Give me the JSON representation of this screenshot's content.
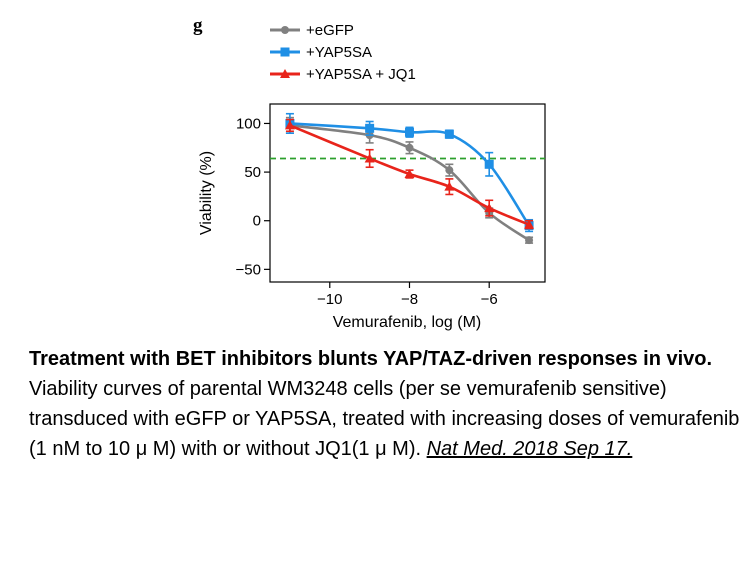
{
  "panel_label": "g",
  "caption": {
    "title": "Treatment with BET inhibitors blunts YAP/TAZ-driven responses in vivo.",
    "body": "Viability curves of parental WM3248 cells (per se vemurafenib sensitive) transduced with eGFP or YAP5SA, treated with increasing doses of vemurafenib (1 nM to 10 μ M) with or without JQ1(1 μ M).",
    "citation": "Nat Med. 2018 Sep 17."
  },
  "chart_data": {
    "type": "line",
    "title": "",
    "xlabel": "Vemurafenib, log (M)",
    "ylabel": "Viability (%)",
    "xlim": [
      -11.5,
      -4.6
    ],
    "ylim": [
      -63,
      120
    ],
    "xticks": [
      -10,
      -8,
      -6
    ],
    "xtick_labels": [
      "−10",
      "−8",
      "−6"
    ],
    "yticks": [
      100,
      50,
      0,
      -50
    ],
    "ytick_labels": [
      "100",
      "50",
      "0",
      "−50"
    ],
    "legend_position": "top",
    "reference_line": {
      "y": 64,
      "color": "#2ca02c",
      "style": "dashed"
    },
    "series": [
      {
        "name": "+eGFP",
        "color": "#808080",
        "marker": "circle",
        "x": [
          -11,
          -9,
          -8,
          -7,
          -6,
          -5
        ],
        "y": [
          98,
          88,
          75,
          52,
          8,
          -20
        ],
        "err": [
          8,
          8,
          6,
          6,
          5,
          3
        ]
      },
      {
        "name": "+YAP5SA",
        "color": "#1f8fe5",
        "marker": "square",
        "x": [
          -11,
          -9,
          -8,
          -7,
          -6,
          -5
        ],
        "y": [
          100,
          95,
          91,
          89,
          58,
          -5
        ],
        "err": [
          10,
          7,
          5,
          4,
          12,
          6
        ]
      },
      {
        "name": "+YAP5SA + JQ1",
        "color": "#e8241b",
        "marker": "triangle",
        "x": [
          -11,
          -9,
          -8,
          -7,
          -6,
          -5
        ],
        "y": [
          98,
          64,
          48,
          35,
          13,
          -4
        ],
        "err": [
          6,
          9,
          4,
          8,
          8,
          4
        ]
      }
    ]
  }
}
